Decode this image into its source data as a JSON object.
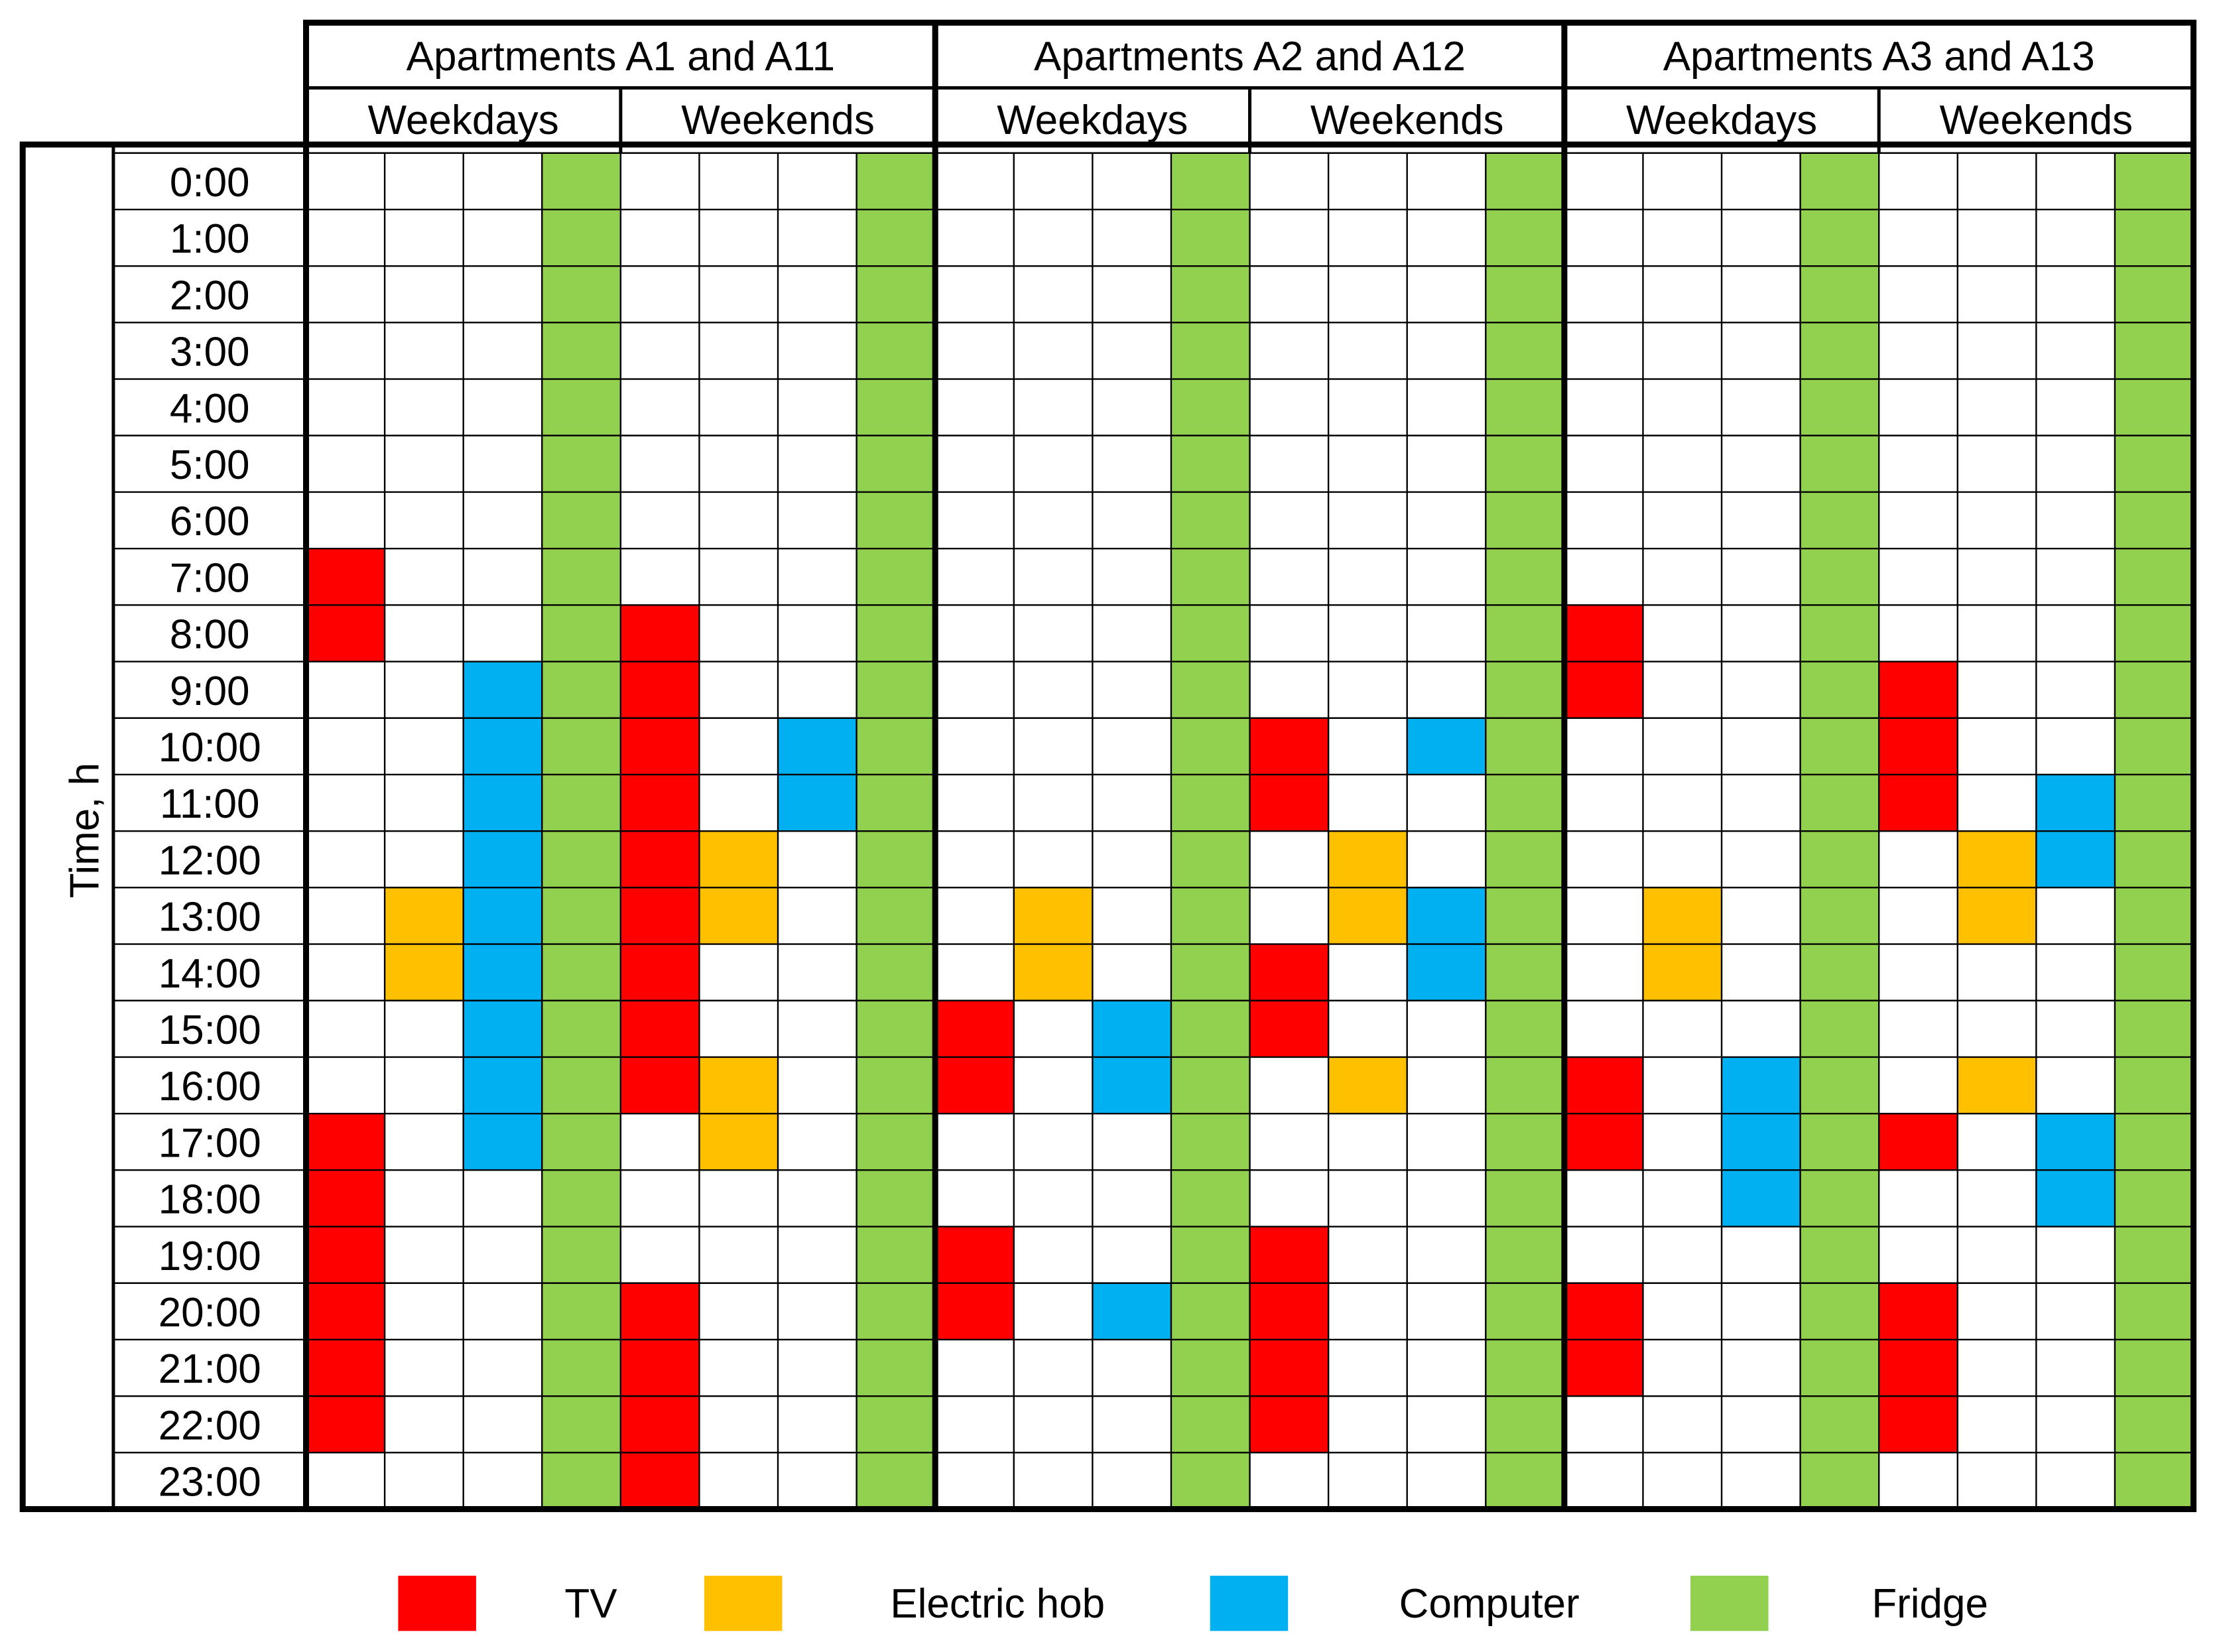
{
  "chart_data": {
    "type": "heatmap",
    "title": "",
    "ylabel": "Time, h",
    "times": [
      "0:00",
      "1:00",
      "2:00",
      "3:00",
      "4:00",
      "5:00",
      "6:00",
      "7:00",
      "8:00",
      "9:00",
      "10:00",
      "11:00",
      "12:00",
      "13:00",
      "14:00",
      "15:00",
      "16:00",
      "17:00",
      "18:00",
      "19:00",
      "20:00",
      "21:00",
      "22:00",
      "23:00"
    ],
    "groups": [
      {
        "name": "Apartments A1 and A11",
        "periods": [
          {
            "name": "Weekdays",
            "usage": {
              "TV": [
                7,
                8,
                17,
                18,
                19,
                20,
                21,
                22
              ],
              "Electric hob": [
                13,
                14
              ],
              "Computer": [
                9,
                10,
                11,
                12,
                13,
                14,
                15,
                16,
                17
              ],
              "Fridge": [
                0,
                1,
                2,
                3,
                4,
                5,
                6,
                7,
                8,
                9,
                10,
                11,
                12,
                13,
                14,
                15,
                16,
                17,
                18,
                19,
                20,
                21,
                22,
                23
              ]
            }
          },
          {
            "name": "Weekends",
            "usage": {
              "TV": [
                8,
                9,
                10,
                11,
                12,
                13,
                14,
                15,
                16,
                20,
                21,
                22,
                23
              ],
              "Electric hob": [
                12,
                13,
                16,
                17
              ],
              "Computer": [
                10,
                11
              ],
              "Fridge": [
                0,
                1,
                2,
                3,
                4,
                5,
                6,
                7,
                8,
                9,
                10,
                11,
                12,
                13,
                14,
                15,
                16,
                17,
                18,
                19,
                20,
                21,
                22,
                23
              ]
            }
          }
        ]
      },
      {
        "name": "Apartments A2 and A12",
        "periods": [
          {
            "name": "Weekdays",
            "usage": {
              "TV": [
                15,
                16,
                19,
                20
              ],
              "Electric hob": [
                13,
                14
              ],
              "Computer": [
                15,
                16,
                20
              ],
              "Fridge": [
                0,
                1,
                2,
                3,
                4,
                5,
                6,
                7,
                8,
                9,
                10,
                11,
                12,
                13,
                14,
                15,
                16,
                17,
                18,
                19,
                20,
                21,
                22,
                23
              ]
            }
          },
          {
            "name": "Weekends",
            "usage": {
              "TV": [
                10,
                11,
                14,
                15,
                19,
                20,
                21,
                22
              ],
              "Electric hob": [
                12,
                13,
                16
              ],
              "Computer": [
                10,
                13,
                14
              ],
              "Fridge": [
                0,
                1,
                2,
                3,
                4,
                5,
                6,
                7,
                8,
                9,
                10,
                11,
                12,
                13,
                14,
                15,
                16,
                17,
                18,
                19,
                20,
                21,
                22,
                23
              ]
            }
          }
        ]
      },
      {
        "name": "Apartments A3 and A13",
        "periods": [
          {
            "name": "Weekdays",
            "usage": {
              "TV": [
                8,
                9,
                16,
                17,
                20,
                21
              ],
              "Electric hob": [
                13,
                14
              ],
              "Computer": [
                16,
                17,
                18
              ],
              "Fridge": [
                0,
                1,
                2,
                3,
                4,
                5,
                6,
                7,
                8,
                9,
                10,
                11,
                12,
                13,
                14,
                15,
                16,
                17,
                18,
                19,
                20,
                21,
                22,
                23
              ]
            }
          },
          {
            "name": "Weekends",
            "usage": {
              "TV": [
                9,
                10,
                11,
                17,
                20,
                21,
                22
              ],
              "Electric hob": [
                12,
                13,
                16
              ],
              "Computer": [
                11,
                12,
                17,
                18
              ],
              "Fridge": [
                0,
                1,
                2,
                3,
                4,
                5,
                6,
                7,
                8,
                9,
                10,
                11,
                12,
                13,
                14,
                15,
                16,
                17,
                18,
                19,
                20,
                21,
                22,
                23
              ]
            }
          }
        ]
      }
    ],
    "appliances": [
      {
        "name": "TV",
        "color": "#ff0000"
      },
      {
        "name": "Electric hob",
        "color": "#ffc000"
      },
      {
        "name": "Computer",
        "color": "#00b0f0"
      },
      {
        "name": "Fridge",
        "color": "#92d050"
      }
    ],
    "legend_position": "bottom"
  }
}
